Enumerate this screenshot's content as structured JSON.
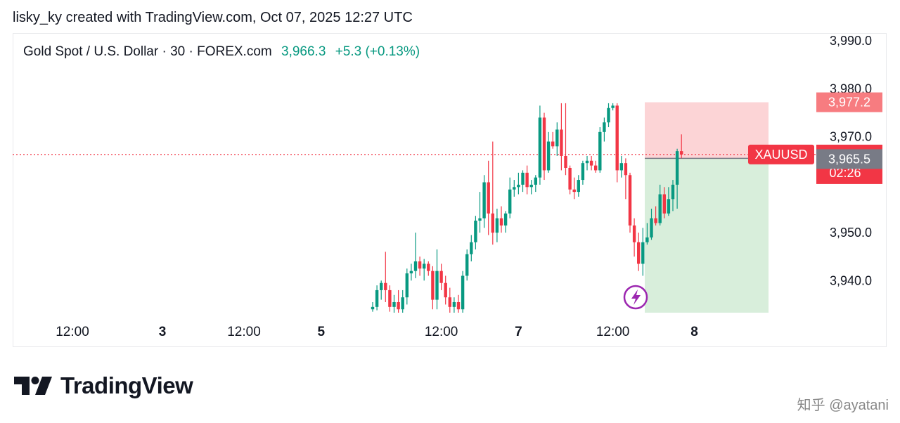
{
  "header": {
    "title": "lisky_ky created with TradingView.com, Oct 07, 2025 12:27 UTC"
  },
  "symbol": {
    "name": "Gold Spot / U.S. Dollar · 30 · FOREX.com",
    "price": "3,966.3",
    "change": "+5.3 (+0.13%)"
  },
  "colors": {
    "up": "#089981",
    "down": "#f23645",
    "profit_zone": "#d8eedb",
    "loss_zone": "#fcd4d6",
    "target_tag": "#f77c80",
    "entry_tag": "#787b86"
  },
  "chart_data": {
    "type": "candlestick",
    "title": "",
    "ylim": [
      3933.3,
      3991.5
    ],
    "y_ticks": [
      "3,990.0",
      "3,980.0",
      "3,970.0",
      "3,950.0",
      "3,940.0"
    ],
    "y_tick_values": [
      3990,
      3980,
      3970,
      3950,
      3940
    ],
    "x_ticks": [
      {
        "label": "12:00",
        "bold": false
      },
      {
        "label": "3",
        "bold": true
      },
      {
        "label": "12:00",
        "bold": false
      },
      {
        "label": "5",
        "bold": true
      },
      {
        "label": "12:00",
        "bold": false
      },
      {
        "label": "7",
        "bold": true
      },
      {
        "label": "12:00",
        "bold": false
      },
      {
        "label": "8",
        "bold": true
      }
    ],
    "x_tick_bar_index": [
      -70,
      -49,
      -30,
      -12,
      16,
      34,
      56,
      75
    ],
    "candles": [
      [
        3934.0,
        3935.5,
        3933.5,
        3934.5
      ],
      [
        3934.5,
        3939.0,
        3933.8,
        3938.0
      ],
      [
        3938.0,
        3940.0,
        3936.0,
        3939.5
      ],
      [
        3939.5,
        3946.0,
        3935.5,
        3938.0
      ],
      [
        3938.0,
        3939.0,
        3933.5,
        3934.5
      ],
      [
        3934.5,
        3937.0,
        3933.3,
        3935.5
      ],
      [
        3935.5,
        3938.0,
        3933.3,
        3934.0
      ],
      [
        3934.0,
        3938.0,
        3933.3,
        3936.5
      ],
      [
        3936.5,
        3942.5,
        3935.0,
        3941.5
      ],
      [
        3941.5,
        3943.5,
        3940.0,
        3942.0
      ],
      [
        3942.0,
        3950.0,
        3940.5,
        3944.0
      ],
      [
        3944.0,
        3945.0,
        3941.0,
        3942.5
      ],
      [
        3942.5,
        3944.5,
        3940.0,
        3943.5
      ],
      [
        3943.5,
        3944.0,
        3941.0,
        3942.0
      ],
      [
        3942.0,
        3943.0,
        3934.0,
        3936.0
      ],
      [
        3936.0,
        3946.5,
        3934.0,
        3942.0
      ],
      [
        3942.0,
        3943.5,
        3938.0,
        3939.5
      ],
      [
        3939.5,
        3941.0,
        3935.0,
        3936.5
      ],
      [
        3936.5,
        3938.5,
        3933.3,
        3934.5
      ],
      [
        3934.5,
        3936.5,
        3933.3,
        3935.5
      ],
      [
        3935.5,
        3937.0,
        3933.3,
        3934.0
      ],
      [
        3934.0,
        3942.0,
        3933.3,
        3941.0
      ],
      [
        3941.0,
        3946.5,
        3940.0,
        3945.5
      ],
      [
        3945.5,
        3949.5,
        3944.0,
        3948.0
      ],
      [
        3948.0,
        3953.5,
        3946.5,
        3952.5
      ],
      [
        3952.5,
        3958.5,
        3950.0,
        3953.0
      ],
      [
        3953.0,
        3962.0,
        3951.0,
        3960.5
      ],
      [
        3960.5,
        3965.0,
        3949.5,
        3954.0
      ],
      [
        3954.0,
        3969.0,
        3947.5,
        3950.0
      ],
      [
        3950.0,
        3955.0,
        3948.0,
        3953.0
      ],
      [
        3953.0,
        3955.5,
        3950.0,
        3951.5
      ],
      [
        3951.5,
        3954.5,
        3950.0,
        3954.0
      ],
      [
        3954.0,
        3961.5,
        3953.0,
        3959.0
      ],
      [
        3959.0,
        3961.0,
        3957.5,
        3959.5
      ],
      [
        3959.5,
        3962.5,
        3958.0,
        3960.0
      ],
      [
        3960.0,
        3963.0,
        3958.5,
        3962.5
      ],
      [
        3962.5,
        3964.0,
        3958.0,
        3959.5
      ],
      [
        3959.5,
        3961.0,
        3958.0,
        3960.0
      ],
      [
        3960.0,
        3962.0,
        3958.5,
        3961.5
      ],
      [
        3961.5,
        3976.5,
        3960.0,
        3974.0
      ],
      [
        3974.0,
        3975.0,
        3961.0,
        3963.0
      ],
      [
        3963.0,
        3971.0,
        3962.5,
        3969.0
      ],
      [
        3969.0,
        3971.0,
        3967.5,
        3968.0
      ],
      [
        3968.0,
        3973.0,
        3966.0,
        3971.5
      ],
      [
        3971.5,
        3977.0,
        3963.0,
        3966.0
      ],
      [
        3966.0,
        3977.0,
        3962.0,
        3963.5
      ],
      [
        3963.5,
        3964.0,
        3958.0,
        3959.0
      ],
      [
        3959.0,
        3961.5,
        3957.0,
        3958.5
      ],
      [
        3958.5,
        3962.0,
        3957.5,
        3961.0
      ],
      [
        3961.0,
        3965.0,
        3960.0,
        3964.5
      ],
      [
        3964.5,
        3966.0,
        3963.0,
        3965.0
      ],
      [
        3965.0,
        3966.0,
        3963.0,
        3964.0
      ],
      [
        3964.0,
        3965.0,
        3962.5,
        3963.0
      ],
      [
        3963.0,
        3972.0,
        3962.5,
        3971.0
      ],
      [
        3971.0,
        3974.0,
        3969.0,
        3973.0
      ],
      [
        3973.0,
        3977.0,
        3972.0,
        3976.0
      ],
      [
        3976.0,
        3977.0,
        3975.5,
        3976.5
      ],
      [
        3976.5,
        3977.0,
        3960.5,
        3963.0
      ],
      [
        3963.0,
        3966.0,
        3961.5,
        3964.5
      ],
      [
        3964.5,
        3965.5,
        3957.0,
        3962.0
      ],
      [
        3962.0,
        3962.5,
        3950.0,
        3951.5
      ],
      [
        3951.5,
        3953.0,
        3945.0,
        3948.0
      ],
      [
        3948.0,
        3950.0,
        3942.0,
        3943.5
      ],
      [
        3943.5,
        3951.0,
        3941.0,
        3948.0
      ],
      [
        3948.0,
        3952.0,
        3947.5,
        3949.0
      ],
      [
        3949.0,
        3955.0,
        3948.5,
        3953.0
      ],
      [
        3953.0,
        3955.5,
        3951.5,
        3952.0
      ],
      [
        3952.0,
        3960.0,
        3951.5,
        3958.0
      ],
      [
        3958.0,
        3959.5,
        3953.0,
        3954.0
      ],
      [
        3954.0,
        3959.5,
        3953.5,
        3957.0
      ],
      [
        3957.0,
        3961.0,
        3954.5,
        3960.0
      ],
      [
        3960.0,
        3967.5,
        3955.0,
        3967.0
      ],
      [
        3967.0,
        3970.5,
        3965.5,
        3966.3
      ]
    ],
    "current_price": 3966.3,
    "current_tag": {
      "label": "XAUUSD",
      "price": "3,966.3",
      "countdown": "02:26"
    },
    "position": {
      "target_price": 3977.2,
      "target_label": "3,977.2",
      "entry_price": 3965.5,
      "entry_label": "3,965.5",
      "stop_price": 3933.3
    }
  },
  "logo": {
    "text": "TradingView"
  },
  "watermark": {
    "text": "知乎 @ayatani"
  }
}
